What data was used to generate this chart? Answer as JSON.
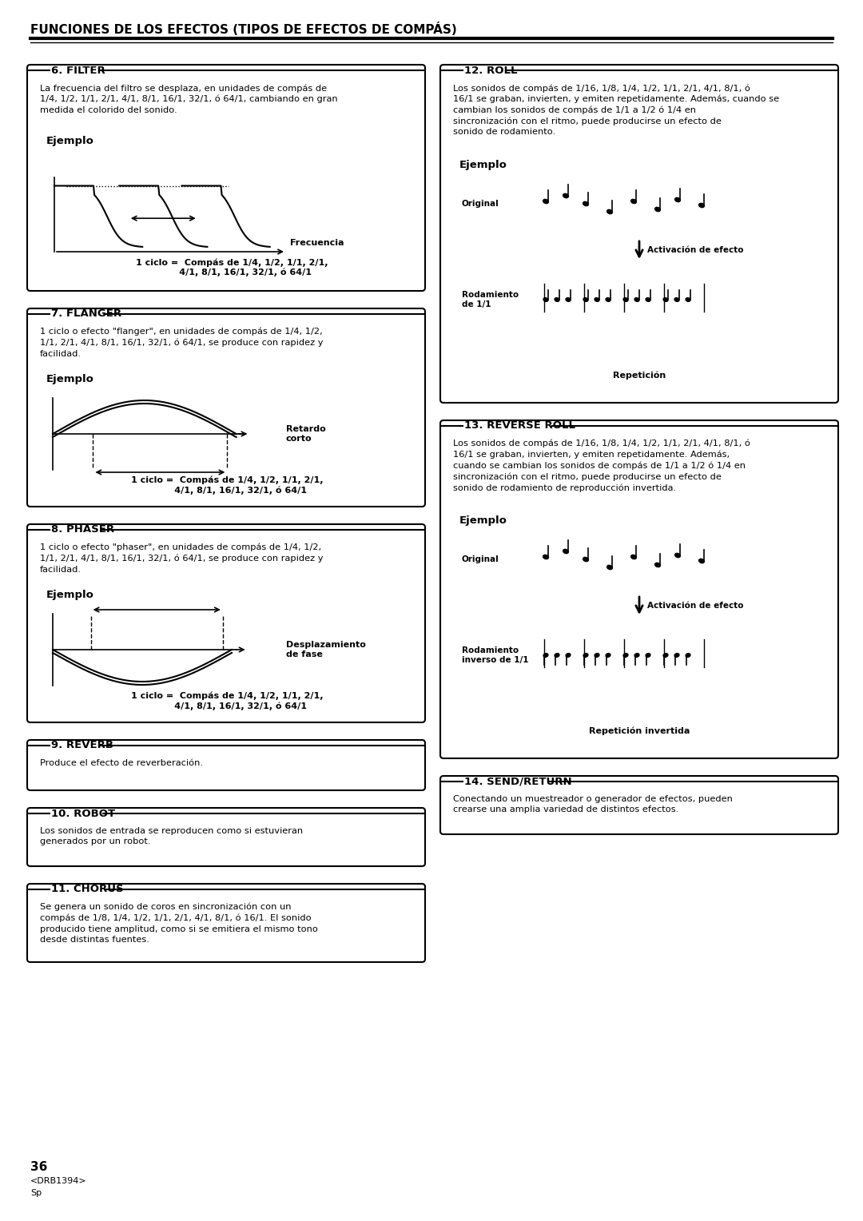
{
  "title": "FUNCIONES DE LOS EFECTOS (TIPOS DE EFECTOS DE COMPÁS)",
  "bg_color": "#ffffff",
  "text_color": "#000000",
  "sections": {
    "filter": {
      "number": "6. FILTER",
      "desc": "La frecuencia del filtro se desplaza, en unidades de compás de\n1/4, 1/2, 1/1, 2/1, 4/1, 8/1, 16/1, 32/1, ó 64/1, cambiando en gran\nmedida el colorido del sonido.",
      "ejemplo_label": "Ejemplo",
      "ciclo_text": "1 ciclo =  Compás de 1/4, 1/2, 1/1, 2/1,\n4/1, 8/1, 16/1, 32/1, ó 64/1",
      "arrow_label": "Frecuencia"
    },
    "flanger": {
      "number": "7. FLANGER",
      "desc": "1 ciclo o efecto “flanger”, en unidades de compás de 1/4, 1/2,\n1/1, 2/1, 4/1, 8/1, 16/1, 32/1, ó 64/1, se produce con rapidez y\nfacilidad.",
      "ejemplo_label": "Ejemplo",
      "ciclo_text": "1 ciclo =  Compás de 1/4, 1/2, 1/1, 2/1,\n4/1, 8/1, 16/1, 32/1, ó 64/1",
      "arrow_label": "Retardo\ncorto"
    },
    "phaser": {
      "number": "8. PHASER",
      "desc": "1 ciclo o efecto “phaser”, en unidades de compás de 1/4, 1/2,\n1/1, 2/1, 4/1, 8/1, 16/1, 32/1, ó 64/1, se produce con rapidez y\nfacilidad.",
      "ejemplo_label": "Ejemplo",
      "ciclo_text": "1 ciclo =  Compás de 1/4, 1/2, 1/1, 2/1,\n4/1, 8/1, 16/1, 32/1, ó 64/1",
      "arrow_label": "Desplazamiento\nde fase"
    },
    "reverb": {
      "number": "9. REVERB",
      "desc": "Produce el efecto de reverberación."
    },
    "robot": {
      "number": "10. ROBOT",
      "desc": "Los sonidos de entrada se reproducen como si estuvieran\ngenerados por un robot."
    },
    "chorus": {
      "number": "11. CHORUS",
      "desc": "Se genera un sonido de coros en sincronización con un\ncompás de 1/8, 1/4, 1/2, 1/1, 2/1, 4/1, 8/1, ó 16/1. El sonido\nproducido tiene amplitud, como si se emitiera el mismo tono\ndesde distintas fuentes."
    },
    "roll": {
      "number": "12. ROLL",
      "desc": "Los sonidos de compás de 1/16, 1/8, 1/4, 1/2, 1/1, 2/1, 4/1, 8/1, ó\n16/1 se graban, invierten, y emiten repetidamente. Además, cuando se\ncambian los sonidos de compás de 1/1 a 1/2 ó 1/4 en\nsincronización con el ritmo, puede producirse un efecto de\nsonido de rodamiento.",
      "ejemplo_label": "Ejemplo",
      "original_label": "Original",
      "activacion_label": "Activación de efecto",
      "rodamiento_label": "Rodamiento\nde 1/1",
      "repeticion_label": "Repetición"
    },
    "reverse_roll": {
      "number": "13. REVERSE ROLL",
      "desc": "Los sonidos de compás de 1/16, 1/8, 1/4, 1/2, 1/1, 2/1, 4/1, 8/1, ó\n16/1 se graban, invierten, y emiten repetidamente. Además,\ncuando se cambian los sonidos de compás de 1/1 a 1/2 ó 1/4 en\nsincronización con el ritmo, puede producirse un efecto de\nsonido de rodamiento de reproducción invertida.",
      "ejemplo_label": "Ejemplo",
      "original_label": "Original",
      "activacion_label": "Activación de efecto",
      "rodamiento_label": "Rodamiento\ninverso de 1/1",
      "repeticion_label": "Repetición invertida"
    },
    "send_return": {
      "number": "14. SEND/RETURN",
      "desc": "Conectando un muestreador o generador de efectos, pueden\ncrearse una amplia variedad de distintos efectos."
    }
  },
  "footer": {
    "page": "36",
    "code": "<DRB1394>",
    "lang": "Sp"
  }
}
